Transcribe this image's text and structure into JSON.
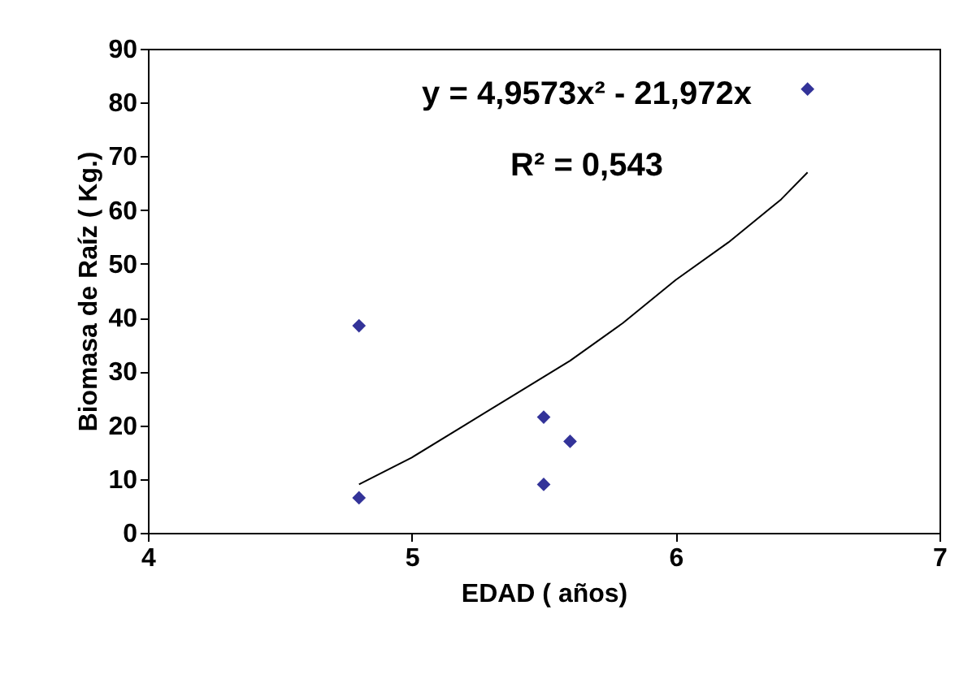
{
  "chart_data": {
    "type": "scatter",
    "xlabel": "EDAD ( años)",
    "ylabel": "Biomasa de Raíz ( Kg.)",
    "xlim": [
      4,
      7
    ],
    "xticks": [
      4,
      5,
      6,
      7
    ],
    "ylim": [
      0,
      90
    ],
    "yticks": [
      0,
      10,
      20,
      30,
      40,
      50,
      60,
      70,
      80,
      90
    ],
    "annotations": [
      "y = 4,9573x² - 21,972x",
      "R² = 0,543"
    ],
    "series": [
      {
        "color": "#333399",
        "marker": "diamond",
        "x": [
          4.8,
          4.8,
          5.5,
          5.5,
          5.6,
          6.5
        ],
        "values": [
          38.5,
          6.5,
          21.5,
          9,
          17,
          82.5
        ]
      },
      {
        "type": "line",
        "color": "#000000",
        "marker": "none",
        "x": [
          4.8,
          5.0,
          5.2,
          5.4,
          5.6,
          5.8,
          6.0,
          6.2,
          6.4,
          6.5
        ],
        "values": [
          9,
          14,
          20,
          26,
          32,
          39,
          47,
          54,
          62,
          67
        ]
      }
    ]
  }
}
